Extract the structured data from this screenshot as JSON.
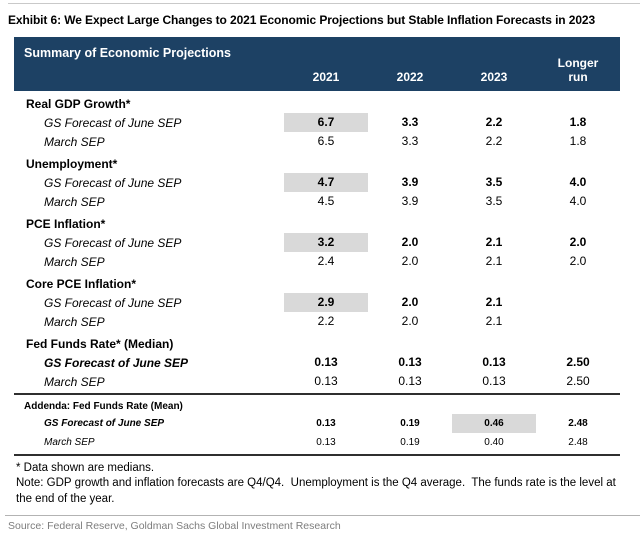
{
  "colors": {
    "header_navy": "#1d4164",
    "highlight_gray": "#d9d9d9"
  },
  "page": {
    "title": "Exhibit 6: We Expect Large Changes to 2021 Economic Projections but Stable Inflation Forecasts in 2023",
    "source": "Source: Federal Reserve, Goldman Sachs Global Investment Research"
  },
  "table": {
    "header_title": "Summary of Economic Projections",
    "columns": [
      "2021",
      "2022",
      "2023",
      "Longer run"
    ],
    "sections": [
      {
        "label": "Real GDP Growth*",
        "gs": {
          "label": "GS Forecast of June SEP",
          "values": [
            "6.7",
            "3.3",
            "2.2",
            "1.8"
          ]
        },
        "march": {
          "label": "March SEP",
          "values": [
            "6.5",
            "3.3",
            "2.2",
            "1.8"
          ]
        }
      },
      {
        "label": "Unemployment*",
        "gs": {
          "label": "GS Forecast of June SEP",
          "values": [
            "4.7",
            "3.9",
            "3.5",
            "4.0"
          ]
        },
        "march": {
          "label": "March SEP",
          "values": [
            "4.5",
            "3.9",
            "3.5",
            "4.0"
          ]
        }
      },
      {
        "label": "PCE Inflation*",
        "gs": {
          "label": "GS Forecast of June SEP",
          "values": [
            "3.2",
            "2.0",
            "2.1",
            "2.0"
          ]
        },
        "march": {
          "label": "March SEP",
          "values": [
            "2.4",
            "2.0",
            "2.1",
            "2.0"
          ]
        }
      },
      {
        "label": "Core PCE Inflation*",
        "gs": {
          "label": "GS Forecast of June SEP",
          "values": [
            "2.9",
            "2.0",
            "2.1",
            ""
          ]
        },
        "march": {
          "label": "March SEP",
          "values": [
            "2.2",
            "2.0",
            "2.1",
            ""
          ]
        }
      },
      {
        "label": "Fed Funds Rate* (Median)",
        "gs": {
          "label": "GS Forecast of June SEP",
          "values": [
            "0.13",
            "0.13",
            "0.13",
            "2.50"
          ]
        },
        "march": {
          "label": "March SEP",
          "values": [
            "0.13",
            "0.13",
            "0.13",
            "2.50"
          ]
        }
      }
    ],
    "addenda": {
      "label": "Addenda: Fed Funds Rate (Mean)",
      "gs": {
        "label": "GS Forecast of June SEP",
        "values": [
          "0.13",
          "0.19",
          "0.46",
          "2.48"
        ]
      },
      "march": {
        "label": "March SEP",
        "values": [
          "0.13",
          "0.19",
          "0.40",
          "2.48"
        ]
      }
    },
    "footnotes": {
      "medians": "* Data shown are medians.",
      "note": "Note: GDP growth and inflation forecasts are Q4/Q4.  Unemployment is the Q4 average.  The funds rate is the level at the end of the year."
    }
  }
}
